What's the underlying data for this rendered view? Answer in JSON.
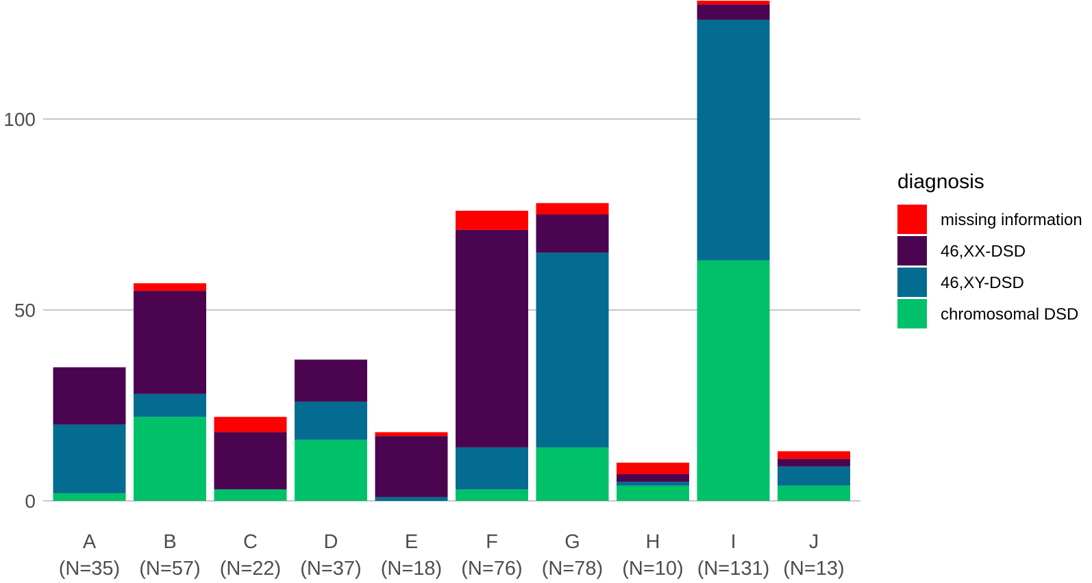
{
  "chart_data": {
    "type": "bar",
    "stacked": true,
    "categories": [
      "A",
      "B",
      "C",
      "D",
      "E",
      "F",
      "G",
      "H",
      "I",
      "J"
    ],
    "category_sublabels": [
      "(N=35)",
      "(N=57)",
      "(N=22)",
      "(N=37)",
      "(N=18)",
      "(N=76)",
      "(N=78)",
      "(N=10)",
      "(N=131)",
      "(N=13)"
    ],
    "series": [
      {
        "name": "chromosomal DSD",
        "color": "#00C16A",
        "values": [
          2,
          22,
          3,
          16,
          0,
          3,
          14,
          4,
          63,
          4
        ]
      },
      {
        "name": "46,XY-DSD",
        "color": "#046C90",
        "values": [
          18,
          6,
          0,
          10,
          1,
          11,
          51,
          1,
          63,
          5
        ]
      },
      {
        "name": "46,XX-DSD",
        "color": "#4B0550",
        "values": [
          15,
          27,
          15,
          11,
          16,
          57,
          10,
          2,
          4,
          2
        ]
      },
      {
        "name": "missing information",
        "color": "#FF0000",
        "values": [
          0,
          2,
          4,
          0,
          1,
          5,
          3,
          3,
          1,
          2
        ]
      }
    ],
    "yticks": [
      0,
      50,
      100
    ],
    "ylim": [
      0,
      131
    ],
    "grid": true,
    "legend": {
      "title": "diagnosis",
      "position": "right",
      "order": [
        "missing information",
        "46,XX-DSD",
        "46,XY-DSD",
        "chromosomal DSD"
      ]
    }
  }
}
